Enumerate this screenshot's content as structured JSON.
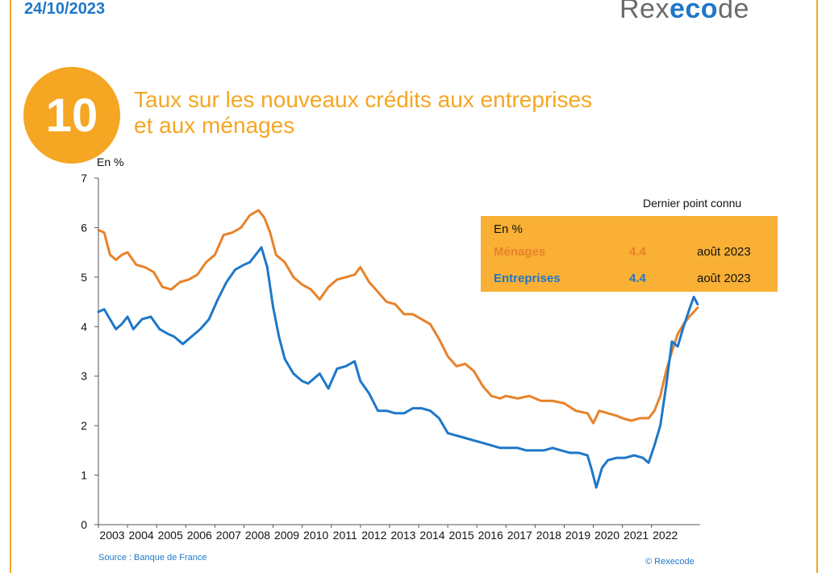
{
  "header": {
    "date": "24/10/2023",
    "logo_prefix": "Rex",
    "logo_accent": "eco",
    "logo_suffix": "de"
  },
  "figure": {
    "number": "10",
    "title_line1": "Taux sur les nouveaux crédits aux entreprises",
    "title_line2": "et aux ménages"
  },
  "source": "Source : Banque de France",
  "copyright": "© Rexecode",
  "legend": {
    "heading": "Dernier point connu",
    "unit": "En %",
    "rows": [
      {
        "label": "Ménages",
        "value": "4.4",
        "date": "août 2023"
      },
      {
        "label": "Entreprises",
        "value": "4.4",
        "date": "août 2023"
      }
    ]
  },
  "colors": {
    "accent": "#f5a623",
    "menages": "#e8822a",
    "entreprises": "#1f77c8"
  },
  "chart_data": {
    "type": "line",
    "ylabel": "En %",
    "ylim": [
      0,
      7
    ],
    "yticks": [
      0,
      1,
      2,
      3,
      4,
      5,
      6,
      7
    ],
    "xlim": [
      2003,
      2023.67
    ],
    "xticks": [
      2003,
      2004,
      2005,
      2006,
      2007,
      2008,
      2009,
      2010,
      2011,
      2012,
      2013,
      2014,
      2015,
      2016,
      2017,
      2018,
      2019,
      2020,
      2021,
      2022
    ],
    "grid": false,
    "series": [
      {
        "name": "Ménages",
        "x": [
          2003.0,
          2003.2,
          2003.4,
          2003.6,
          2003.8,
          2004.0,
          2004.3,
          2004.6,
          2004.9,
          2005.2,
          2005.5,
          2005.8,
          2006.1,
          2006.4,
          2006.7,
          2007.0,
          2007.3,
          2007.6,
          2007.9,
          2008.2,
          2008.5,
          2008.7,
          2008.9,
          2009.1,
          2009.4,
          2009.7,
          2010.0,
          2010.3,
          2010.6,
          2010.9,
          2011.2,
          2011.5,
          2011.8,
          2012.0,
          2012.3,
          2012.6,
          2012.9,
          2013.2,
          2013.5,
          2013.8,
          2014.1,
          2014.4,
          2014.7,
          2015.0,
          2015.3,
          2015.6,
          2015.9,
          2016.2,
          2016.5,
          2016.8,
          2017.0,
          2017.4,
          2017.8,
          2018.2,
          2018.6,
          2019.0,
          2019.4,
          2019.8,
          2020.0,
          2020.2,
          2020.5,
          2020.8,
          2021.0,
          2021.3,
          2021.6,
          2021.9,
          2022.1,
          2022.3,
          2022.5,
          2022.7,
          2022.9,
          2023.1,
          2023.3,
          2023.58
        ],
        "y": [
          5.95,
          5.9,
          5.45,
          5.35,
          5.45,
          5.5,
          5.25,
          5.2,
          5.1,
          4.8,
          4.75,
          4.9,
          4.95,
          5.05,
          5.3,
          5.45,
          5.85,
          5.9,
          6.0,
          6.25,
          6.35,
          6.2,
          5.9,
          5.45,
          5.3,
          5.0,
          4.85,
          4.75,
          4.55,
          4.8,
          4.95,
          5.0,
          5.05,
          5.2,
          4.9,
          4.7,
          4.5,
          4.45,
          4.25,
          4.25,
          4.15,
          4.05,
          3.75,
          3.4,
          3.2,
          3.25,
          3.1,
          2.8,
          2.6,
          2.55,
          2.6,
          2.55,
          2.6,
          2.5,
          2.5,
          2.45,
          2.3,
          2.25,
          2.05,
          2.3,
          2.25,
          2.2,
          2.15,
          2.1,
          2.15,
          2.15,
          2.3,
          2.6,
          3.1,
          3.5,
          3.85,
          4.05,
          4.2,
          4.38
        ]
      },
      {
        "name": "Entreprises",
        "x": [
          2003.0,
          2003.2,
          2003.4,
          2003.6,
          2003.8,
          2004.0,
          2004.2,
          2004.5,
          2004.8,
          2005.1,
          2005.4,
          2005.6,
          2005.9,
          2006.2,
          2006.5,
          2006.8,
          2007.1,
          2007.4,
          2007.7,
          2008.0,
          2008.2,
          2008.4,
          2008.6,
          2008.8,
          2009.0,
          2009.2,
          2009.4,
          2009.7,
          2010.0,
          2010.2,
          2010.4,
          2010.6,
          2010.9,
          2011.2,
          2011.5,
          2011.8,
          2012.0,
          2012.3,
          2012.6,
          2012.9,
          2013.2,
          2013.5,
          2013.8,
          2014.1,
          2014.4,
          2014.7,
          2015.0,
          2015.3,
          2015.6,
          2015.9,
          2016.2,
          2016.5,
          2016.8,
          2017.1,
          2017.4,
          2017.7,
          2018.0,
          2018.3,
          2018.6,
          2018.9,
          2019.2,
          2019.5,
          2019.8,
          2019.95,
          2020.1,
          2020.3,
          2020.5,
          2020.8,
          2021.1,
          2021.4,
          2021.7,
          2021.9,
          2022.1,
          2022.3,
          2022.5,
          2022.7,
          2022.9,
          2023.1,
          2023.3,
          2023.45,
          2023.58
        ],
        "y": [
          4.3,
          4.35,
          4.15,
          3.95,
          4.05,
          4.2,
          3.95,
          4.15,
          4.2,
          3.95,
          3.85,
          3.8,
          3.65,
          3.8,
          3.95,
          4.15,
          4.55,
          4.9,
          5.15,
          5.25,
          5.3,
          5.45,
          5.6,
          5.2,
          4.4,
          3.8,
          3.35,
          3.05,
          2.9,
          2.85,
          2.95,
          3.05,
          2.75,
          3.15,
          3.2,
          3.3,
          2.9,
          2.65,
          2.3,
          2.3,
          2.25,
          2.25,
          2.35,
          2.35,
          2.3,
          2.15,
          1.85,
          1.8,
          1.75,
          1.7,
          1.65,
          1.6,
          1.55,
          1.55,
          1.55,
          1.5,
          1.5,
          1.5,
          1.55,
          1.5,
          1.45,
          1.45,
          1.4,
          1.1,
          0.75,
          1.15,
          1.3,
          1.35,
          1.35,
          1.4,
          1.35,
          1.25,
          1.6,
          2.0,
          2.8,
          3.7,
          3.6,
          4.0,
          4.35,
          4.6,
          4.45
        ]
      }
    ]
  }
}
